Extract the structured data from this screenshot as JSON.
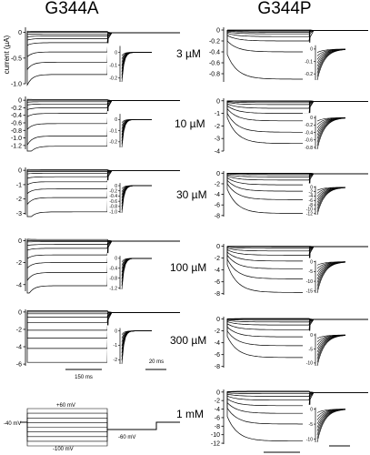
{
  "titles": {
    "left": "G344A",
    "right": "G344P"
  },
  "ylabel": "current (µA)",
  "concentrations": [
    "3 µM",
    "10 µM",
    "30 µM",
    "100 µM",
    "300 µM",
    "1 mM"
  ],
  "scale_bars": {
    "main": "150 ms",
    "inset": "20 ms"
  },
  "protocol": {
    "top": "+60 mV",
    "hold": "-40 mV",
    "bottom": "-100 mV",
    "tail": "-60 mV"
  },
  "chart_data": [
    {
      "type": "line",
      "panel": "G344A",
      "concentration": "3 µM",
      "yticks": [
        "0",
        "-0.5",
        "-1.0"
      ],
      "ylim": [
        -1.0,
        0.1
      ],
      "steady": [
        0.02,
        0.0,
        -0.03,
        -0.07,
        -0.12,
        -0.2,
        -0.38,
        -0.58,
        -0.82
      ],
      "decay": 0.25,
      "inset": {
        "yticks": [
          "0",
          "-0.1",
          "-0.2"
        ],
        "ylim": [
          -0.23,
          0.05
        ]
      }
    },
    {
      "type": "line",
      "panel": "G344A",
      "concentration": "10 µM",
      "yticks": [
        "0",
        "-0.2",
        "-0.4",
        "-0.6",
        "-0.8",
        "-1.0",
        "-1.2"
      ],
      "ylim": [
        -1.3,
        0.1
      ],
      "steady": [
        0.02,
        0.0,
        -0.04,
        -0.1,
        -0.2,
        -0.35,
        -0.62,
        -0.95,
        -1.22
      ],
      "decay": 0.25,
      "inset": {
        "yticks": [
          "0",
          "-0.1",
          "-0.2"
        ],
        "ylim": [
          -0.25,
          0.05
        ]
      }
    },
    {
      "type": "line",
      "panel": "G344A",
      "concentration": "30 µM",
      "yticks": [
        "0",
        "-1",
        "-2",
        "-3"
      ],
      "ylim": [
        -3.1,
        0.2
      ],
      "steady": [
        0.05,
        0.0,
        -0.08,
        -0.2,
        -0.45,
        -0.8,
        -1.3,
        -1.9,
        -2.9
      ],
      "decay": 0.25,
      "inset": {
        "yticks": [
          "0",
          "-0.2",
          "-0.4",
          "-0.6",
          "-0.8",
          "-1.0"
        ],
        "ylim": [
          -1.05,
          0.1
        ]
      }
    },
    {
      "type": "line",
      "panel": "G344A",
      "concentration": "100 µM",
      "yticks": [
        "0",
        "-2",
        "-4"
      ],
      "ylim": [
        -4.6,
        0.2
      ],
      "steady": [
        0.1,
        0.0,
        -0.1,
        -0.35,
        -0.7,
        -1.3,
        -2.0,
        -2.9,
        -4.1
      ],
      "decay": 0.25,
      "inset": {
        "yticks": [
          "0",
          "-0.4",
          "-0.8",
          "-1.2"
        ],
        "ylim": [
          -1.25,
          0.1
        ]
      }
    },
    {
      "type": "line",
      "panel": "G344A",
      "concentration": "300 µM",
      "yticks": [
        "0",
        "-2",
        "-4",
        "-6"
      ],
      "ylim": [
        -6.2,
        0.3
      ],
      "steady": [
        0.15,
        0.0,
        -0.2,
        -0.6,
        -1.2,
        -2.1,
        -3.0,
        -4.2,
        -5.8
      ],
      "decay": 0.0,
      "inset": {
        "yticks": [
          "0",
          "-1",
          "-2"
        ],
        "ylim": [
          -2.3,
          0.2
        ]
      }
    },
    {
      "type": "line",
      "panel": "G344P",
      "concentration": "3 µM",
      "yticks": [
        "0",
        "-0.2",
        "-0.4",
        "-0.6",
        "-0.8"
      ],
      "ylim": [
        -0.95,
        0.05
      ],
      "steady": [
        0.0,
        -0.01,
        -0.02,
        -0.04,
        -0.07,
        -0.12,
        -0.2,
        -0.4,
        -0.9
      ],
      "decay": -0.5,
      "inset": {
        "yticks": [
          "0",
          "-0.1",
          "-0.2"
        ],
        "ylim": [
          -0.25,
          0.03
        ]
      }
    },
    {
      "type": "line",
      "panel": "G344P",
      "concentration": "10 µM",
      "yticks": [
        "0",
        "-1",
        "-2",
        "-3",
        "-4"
      ],
      "ylim": [
        -4.0,
        0.2
      ],
      "steady": [
        0.0,
        -0.05,
        -0.15,
        -0.3,
        -0.6,
        -1.0,
        -1.6,
        -2.5,
        -3.4
      ],
      "decay": -0.6,
      "inset": {
        "yticks": [
          "0",
          "-0.2",
          "-0.4",
          "-0.6",
          "-0.8"
        ],
        "ylim": [
          -0.85,
          0.05
        ]
      }
    },
    {
      "type": "line",
      "panel": "G344P",
      "concentration": "30 µM",
      "yticks": [
        "0",
        "-2",
        "-4",
        "-6",
        "-8"
      ],
      "ylim": [
        -8.2,
        0.4
      ],
      "steady": [
        0.0,
        -0.1,
        -0.3,
        -0.7,
        -1.3,
        -2.2,
        -3.4,
        -5.0,
        -7.6
      ],
      "decay": -0.6,
      "inset": {
        "yticks": [
          "0",
          "-2",
          "-4",
          "-6",
          "-8",
          "-10",
          "-12"
        ],
        "ylim": [
          -12.5,
          0.5
        ]
      }
    },
    {
      "type": "line",
      "panel": "G344P",
      "concentration": "100 µM",
      "yticks": [
        "0",
        "-2",
        "-4",
        "-6",
        "-8"
      ],
      "ylim": [
        -8.2,
        0.4
      ],
      "steady": [
        0.0,
        -0.1,
        -0.35,
        -0.8,
        -1.5,
        -2.5,
        -3.8,
        -5.5,
        -7.8
      ],
      "decay": -0.6,
      "inset": {
        "yticks": [
          "0",
          "-5",
          "-10",
          "-15"
        ],
        "ylim": [
          -16,
          0.5
        ]
      }
    },
    {
      "type": "line",
      "panel": "G344P",
      "concentration": "300 µM",
      "yticks": [
        "0",
        "-2",
        "-4",
        "-6",
        "-8"
      ],
      "ylim": [
        -8.2,
        0.4
      ],
      "steady": [
        0.1,
        0.0,
        -0.2,
        -0.5,
        -1.0,
        -1.8,
        -3.0,
        -4.5,
        -6.5
      ],
      "decay": -0.55,
      "inset": {
        "yticks": [
          "0",
          "-5",
          "-10"
        ],
        "ylim": [
          -11,
          0.5
        ]
      }
    },
    {
      "type": "line",
      "panel": "G344P",
      "concentration": "1 mM",
      "yticks": [
        "0",
        "-2",
        "-4",
        "-6",
        "-8",
        "-10",
        "-12"
      ],
      "ylim": [
        -12.2,
        0.6
      ],
      "steady": [
        0.2,
        0.0,
        -0.4,
        -1.0,
        -1.9,
        -3.2,
        -5.0,
        -7.5,
        -11.5
      ],
      "decay": -0.5,
      "inset": {
        "yticks": [
          "0",
          "-5",
          "-10"
        ],
        "ylim": [
          -11,
          0.5
        ]
      }
    }
  ]
}
